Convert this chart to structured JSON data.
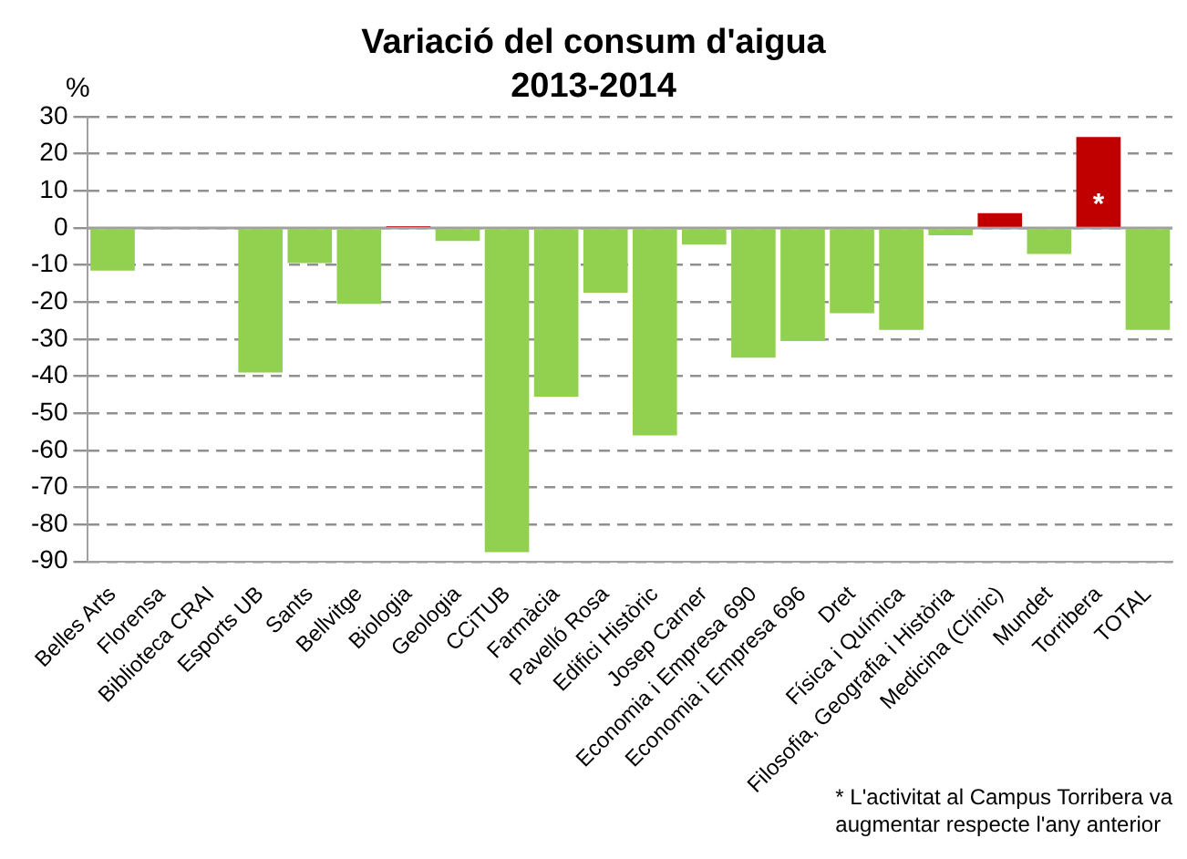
{
  "chart_data": {
    "type": "bar",
    "title": "Variació del consum d'aigua\n2013-2014",
    "ylabel": "%",
    "categories": [
      "Belles Arts",
      "Florensa",
      "Biblioteca CRAI",
      "Esports UB",
      "Sants",
      "Bellvitge",
      "Biologia",
      "Geologia",
      "CCiTUB",
      "Farmàcia",
      "Pavelló Rosa",
      "Edifici Històric",
      "Josep Carner",
      "Economia i Empresa 690",
      "Economia i Empresa 696",
      "Dret",
      "Física i Química",
      "Filosofia, Geografia i Història",
      "Medicina (Clínic)",
      "Mundet",
      "Torribera",
      "TOTAL"
    ],
    "values": [
      -11.5,
      null,
      null,
      -39,
      -9.5,
      -20.5,
      0.5,
      -3.5,
      -87.5,
      -45.5,
      -17.5,
      -56,
      -4.5,
      -35,
      -30.5,
      -23,
      -27.5,
      -2,
      4,
      -7,
      24.5,
      -27.5
    ],
    "colors": [
      "#92d050",
      "#92d050",
      "#92d050",
      "#92d050",
      "#92d050",
      "#92d050",
      "#c00000",
      "#92d050",
      "#92d050",
      "#92d050",
      "#92d050",
      "#92d050",
      "#92d050",
      "#92d050",
      "#92d050",
      "#92d050",
      "#92d050",
      "#92d050",
      "#c00000",
      "#92d050",
      "#c00000",
      "#92d050"
    ],
    "ylim": [
      -90,
      30
    ],
    "yticks": [
      -90,
      -80,
      -70,
      -60,
      -50,
      -40,
      -30,
      -20,
      -10,
      0,
      10,
      20,
      30
    ],
    "grid": "y",
    "legend": false,
    "annotations": [
      {
        "text": "*",
        "x": "Torribera",
        "y": 24.5
      },
      "* L'activitat al Campus Torribera va\naugmentar respecte l'any anterior"
    ]
  }
}
